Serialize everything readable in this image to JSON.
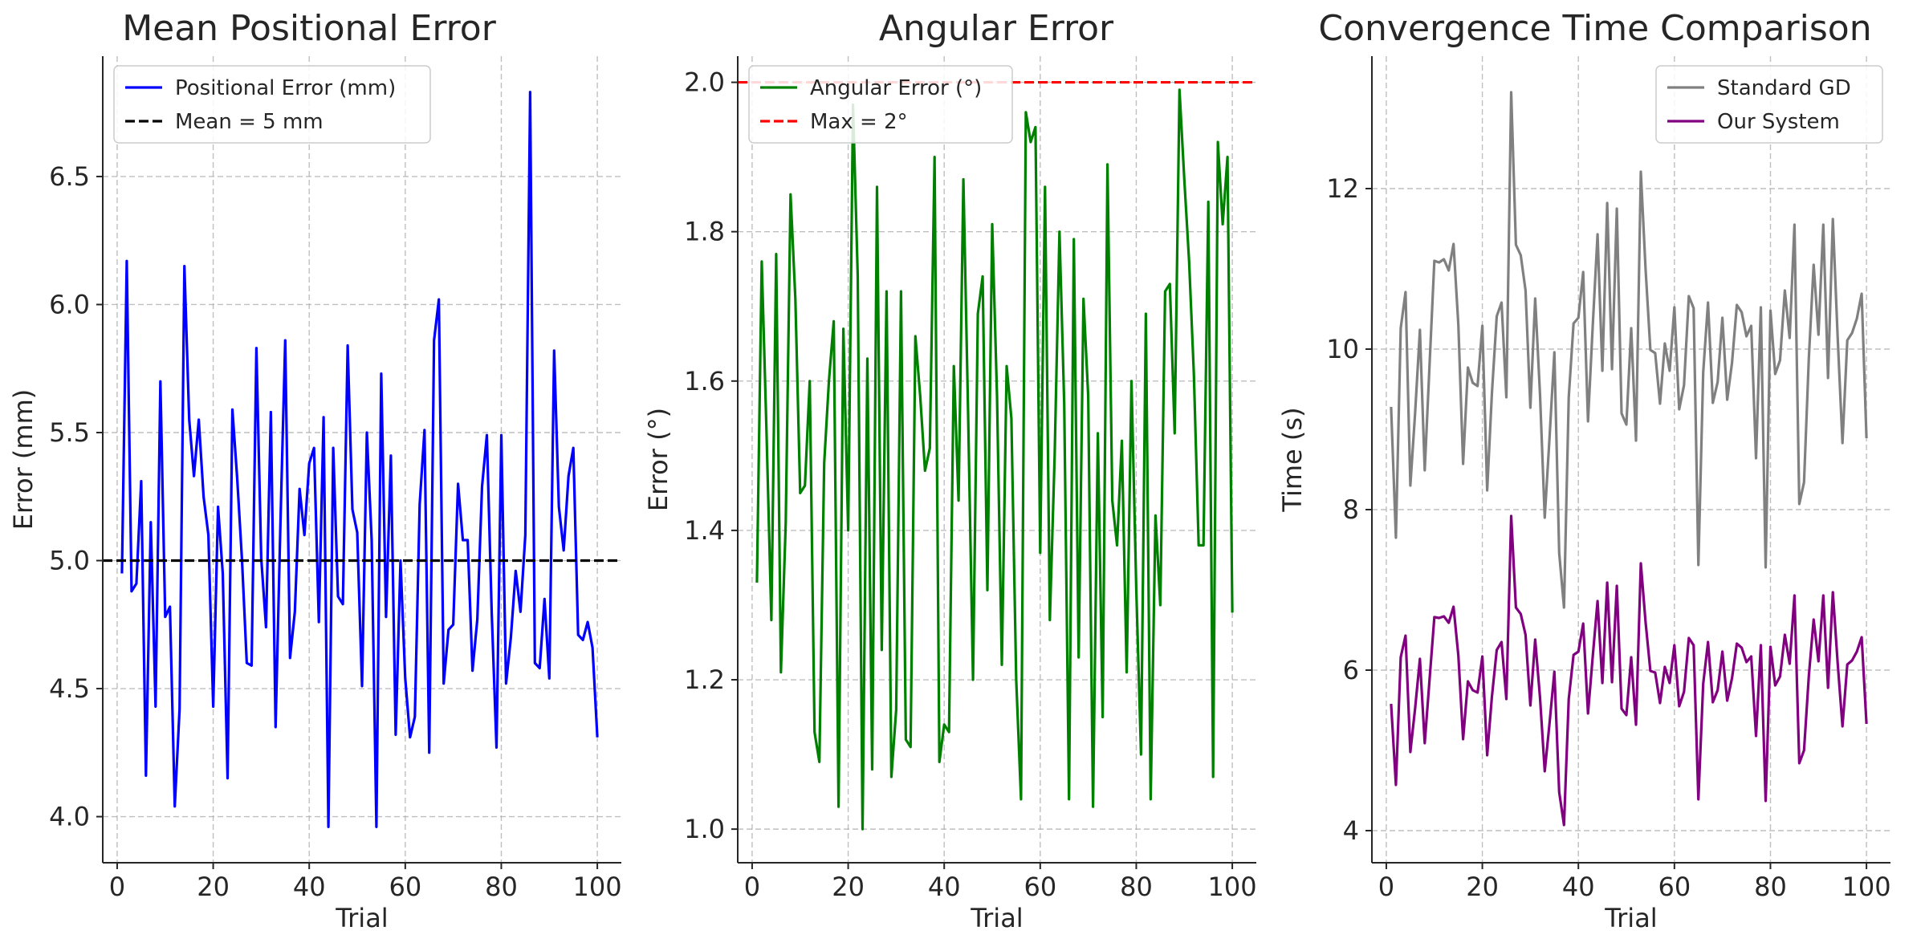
{
  "chart_data": [
    {
      "type": "line",
      "title": "Mean Positional Error",
      "xlabel": "Trial",
      "ylabel": "Error (mm)",
      "xlim": [
        -3,
        105
      ],
      "ylim": [
        3.82,
        6.97
      ],
      "xticks": [
        0,
        20,
        40,
        60,
        80,
        100
      ],
      "yticks": [
        4.0,
        4.5,
        5.0,
        5.5,
        6.0,
        6.5
      ],
      "ytick_labels": [
        "4.0",
        "4.5",
        "5.0",
        "5.5",
        "6.0",
        "6.5"
      ],
      "grid": true,
      "legend_position": "top-left",
      "series": [
        {
          "name": "Positional Error (mm)",
          "color": "#0000ff",
          "style": "solid",
          "x": [
            1,
            2,
            3,
            4,
            5,
            6,
            7,
            8,
            9,
            10,
            11,
            12,
            13,
            14,
            15,
            16,
            17,
            18,
            19,
            20,
            21,
            22,
            23,
            24,
            25,
            26,
            27,
            28,
            29,
            30,
            31,
            32,
            33,
            34,
            35,
            36,
            37,
            38,
            39,
            40,
            41,
            42,
            43,
            44,
            45,
            46,
            47,
            48,
            49,
            50,
            51,
            52,
            53,
            54,
            55,
            56,
            57,
            58,
            59,
            60,
            61,
            62,
            63,
            64,
            65,
            66,
            67,
            68,
            69,
            70,
            71,
            72,
            73,
            74,
            75,
            76,
            77,
            78,
            79,
            80,
            81,
            82,
            83,
            84,
            85,
            86,
            87,
            88,
            89,
            90,
            91,
            92,
            93,
            94,
            95,
            96,
            97,
            98,
            99,
            100
          ],
          "values": [
            4.95,
            6.17,
            4.88,
            4.91,
            5.31,
            4.16,
            5.15,
            4.43,
            5.7,
            4.78,
            4.82,
            4.04,
            4.42,
            6.15,
            5.55,
            5.33,
            5.55,
            5.25,
            5.1,
            4.43,
            5.21,
            4.95,
            4.15,
            5.59,
            5.32,
            5.0,
            4.6,
            4.59,
            5.83,
            5.01,
            4.74,
            5.58,
            4.35,
            5.14,
            5.86,
            4.62,
            4.8,
            5.28,
            5.1,
            5.38,
            5.44,
            4.76,
            5.56,
            3.96,
            5.44,
            4.86,
            4.83,
            5.84,
            5.2,
            5.11,
            4.51,
            5.5,
            5.08,
            3.96,
            5.73,
            4.78,
            5.41,
            4.32,
            5.0,
            4.54,
            4.31,
            4.39,
            5.22,
            5.51,
            4.25,
            5.86,
            6.02,
            4.52,
            4.73,
            4.75,
            5.3,
            5.08,
            5.08,
            4.57,
            4.77,
            5.29,
            5.49,
            4.8,
            4.27,
            5.49,
            4.52,
            4.7,
            4.96,
            4.8,
            5.1,
            6.83,
            4.6,
            4.58,
            4.85,
            4.54,
            5.82,
            5.21,
            5.04,
            5.33,
            5.44,
            4.71,
            4.69,
            4.76,
            4.66,
            4.31
          ]
        },
        {
          "name": "Mean = 5 mm",
          "color": "#000000",
          "style": "dashed",
          "hline": 5.0
        }
      ]
    },
    {
      "type": "line",
      "title": "Angular Error",
      "xlabel": "Trial",
      "ylabel": "Error (°)",
      "xlim": [
        -3,
        105
      ],
      "ylim": [
        0.955,
        2.035
      ],
      "xticks": [
        0,
        20,
        40,
        60,
        80,
        100
      ],
      "yticks": [
        1.0,
        1.2,
        1.4,
        1.6,
        1.8,
        2.0
      ],
      "ytick_labels": [
        "1.0",
        "1.2",
        "1.4",
        "1.6",
        "1.8",
        "2.0"
      ],
      "grid": true,
      "legend_position": "top-left",
      "series": [
        {
          "name": "Angular Error (°)",
          "color": "#008000",
          "style": "solid",
          "x": [
            1,
            2,
            3,
            4,
            5,
            6,
            7,
            8,
            9,
            10,
            11,
            12,
            13,
            14,
            15,
            16,
            17,
            18,
            19,
            20,
            21,
            22,
            23,
            24,
            25,
            26,
            27,
            28,
            29,
            30,
            31,
            32,
            33,
            34,
            35,
            36,
            37,
            38,
            39,
            40,
            41,
            42,
            43,
            44,
            45,
            46,
            47,
            48,
            49,
            50,
            51,
            52,
            53,
            54,
            55,
            56,
            57,
            58,
            59,
            60,
            61,
            62,
            63,
            64,
            65,
            66,
            67,
            68,
            69,
            70,
            71,
            72,
            73,
            74,
            75,
            76,
            77,
            78,
            79,
            80,
            81,
            82,
            83,
            84,
            85,
            86,
            87,
            88,
            89,
            90,
            91,
            92,
            93,
            94,
            95,
            96,
            97,
            98,
            99,
            100
          ],
          "values": [
            1.33,
            1.76,
            1.53,
            1.28,
            1.77,
            1.21,
            1.41,
            1.85,
            1.71,
            1.45,
            1.46,
            1.6,
            1.13,
            1.09,
            1.49,
            1.6,
            1.68,
            1.03,
            1.67,
            1.4,
            1.97,
            1.74,
            1.0,
            1.63,
            1.08,
            1.86,
            1.24,
            1.72,
            1.07,
            1.16,
            1.72,
            1.12,
            1.11,
            1.66,
            1.58,
            1.48,
            1.51,
            1.9,
            1.09,
            1.14,
            1.13,
            1.62,
            1.44,
            1.87,
            1.55,
            1.2,
            1.69,
            1.74,
            1.32,
            1.81,
            1.58,
            1.22,
            1.62,
            1.55,
            1.2,
            1.04,
            1.96,
            1.92,
            1.94,
            1.37,
            1.86,
            1.28,
            1.5,
            1.8,
            1.57,
            1.04,
            1.79,
            1.23,
            1.71,
            1.58,
            1.03,
            1.53,
            1.15,
            1.89,
            1.44,
            1.38,
            1.52,
            1.21,
            1.6,
            1.32,
            1.1,
            1.69,
            1.04,
            1.42,
            1.3,
            1.72,
            1.73,
            1.53,
            1.99,
            1.87,
            1.76,
            1.61,
            1.38,
            1.38,
            1.84,
            1.07,
            1.92,
            1.81,
            1.9,
            1.29
          ]
        },
        {
          "name": "Max = 2°",
          "color": "#ff0000",
          "style": "dashed",
          "hline": 2.0
        }
      ]
    },
    {
      "type": "line",
      "title": "Convergence Time Comparison",
      "xlabel": "Trial",
      "ylabel": "Time (s)",
      "xlim": [
        -3,
        105
      ],
      "ylim": [
        3.6,
        13.65
      ],
      "xticks": [
        0,
        20,
        40,
        60,
        80,
        100
      ],
      "yticks": [
        4,
        6,
        8,
        10,
        12
      ],
      "ytick_labels": [
        "4",
        "6",
        "8",
        "10",
        "12"
      ],
      "grid": true,
      "legend_position": "top-right",
      "series": [
        {
          "name": "Standard GD",
          "color": "#808080",
          "style": "solid",
          "x": [
            1,
            2,
            3,
            4,
            5,
            6,
            7,
            8,
            9,
            10,
            11,
            12,
            13,
            14,
            15,
            16,
            17,
            18,
            19,
            20,
            21,
            22,
            23,
            24,
            25,
            26,
            27,
            28,
            29,
            30,
            31,
            32,
            33,
            34,
            35,
            36,
            37,
            38,
            39,
            40,
            41,
            42,
            43,
            44,
            45,
            46,
            47,
            48,
            49,
            50,
            51,
            52,
            53,
            54,
            55,
            56,
            57,
            58,
            59,
            60,
            61,
            62,
            63,
            64,
            65,
            66,
            67,
            68,
            69,
            70,
            71,
            72,
            73,
            74,
            75,
            76,
            77,
            78,
            79,
            80,
            81,
            82,
            83,
            84,
            85,
            86,
            87,
            88,
            89,
            90,
            91,
            92,
            93,
            94,
            95,
            96,
            97,
            98,
            99,
            100
          ],
          "values": [
            9.28,
            7.65,
            10.26,
            10.71,
            8.3,
            9.2,
            10.24,
            8.49,
            9.8,
            11.1,
            11.08,
            11.12,
            10.98,
            11.31,
            10.3,
            8.57,
            9.77,
            9.58,
            9.54,
            10.29,
            8.24,
            9.45,
            10.41,
            10.58,
            9.4,
            13.2,
            11.3,
            11.17,
            10.73,
            9.27,
            10.63,
            9.44,
            7.9,
            8.9,
            9.96,
            7.46,
            6.78,
            9.4,
            10.32,
            10.39,
            10.96,
            9.1,
            10.29,
            11.43,
            9.73,
            11.82,
            9.75,
            11.75,
            9.2,
            9.06,
            10.26,
            8.86,
            12.21,
            11.0,
            9.99,
            9.95,
            9.32,
            10.07,
            9.73,
            10.52,
            9.25,
            9.55,
            10.66,
            10.51,
            7.31,
            9.71,
            10.58,
            9.33,
            9.59,
            10.39,
            9.37,
            9.83,
            10.55,
            10.46,
            10.16,
            10.29,
            8.64,
            10.52,
            7.28,
            10.48,
            9.69,
            9.86,
            10.73,
            10.14,
            11.55,
            8.07,
            8.34,
            9.89,
            11.05,
            10.18,
            11.55,
            9.64,
            11.62,
            10.15,
            8.83,
            10.11,
            10.2,
            10.38,
            10.69,
            8.89
          ]
        },
        {
          "name": "Our System",
          "color": "#800080",
          "style": "solid",
          "x": [
            1,
            2,
            3,
            4,
            5,
            6,
            7,
            8,
            9,
            10,
            11,
            12,
            13,
            14,
            15,
            16,
            17,
            18,
            19,
            20,
            21,
            22,
            23,
            24,
            25,
            26,
            27,
            28,
            29,
            30,
            31,
            32,
            33,
            34,
            35,
            36,
            37,
            38,
            39,
            40,
            41,
            42,
            43,
            44,
            45,
            46,
            47,
            48,
            49,
            50,
            51,
            52,
            53,
            54,
            55,
            56,
            57,
            58,
            59,
            60,
            61,
            62,
            63,
            64,
            65,
            66,
            67,
            68,
            69,
            70,
            71,
            72,
            73,
            74,
            75,
            76,
            77,
            78,
            79,
            80,
            81,
            82,
            83,
            84,
            85,
            86,
            87,
            88,
            89,
            90,
            91,
            92,
            93,
            94,
            95,
            96,
            97,
            98,
            99,
            100
          ],
          "values": [
            5.58,
            4.57,
            6.16,
            6.43,
            4.98,
            5.52,
            6.14,
            5.09,
            5.88,
            6.66,
            6.65,
            6.67,
            6.59,
            6.79,
            6.18,
            5.14,
            5.86,
            5.75,
            5.72,
            6.17,
            4.94,
            5.67,
            6.25,
            6.35,
            5.64,
            7.92,
            6.78,
            6.7,
            6.44,
            5.56,
            6.38,
            5.66,
            4.74,
            5.34,
            5.98,
            4.48,
            4.07,
            5.64,
            6.19,
            6.23,
            6.58,
            5.46,
            6.17,
            6.86,
            5.84,
            7.09,
            5.85,
            7.05,
            5.52,
            5.44,
            6.16,
            5.32,
            7.33,
            6.6,
            5.99,
            5.97,
            5.59,
            6.04,
            5.84,
            6.31,
            5.55,
            5.73,
            6.4,
            6.31,
            4.39,
            5.83,
            6.35,
            5.6,
            5.75,
            6.23,
            5.62,
            5.9,
            6.33,
            6.28,
            6.1,
            6.17,
            5.18,
            6.31,
            4.37,
            6.29,
            5.81,
            5.92,
            6.44,
            6.08,
            6.93,
            4.84,
            5.0,
            5.93,
            6.63,
            6.11,
            6.93,
            5.78,
            6.97,
            6.09,
            5.3,
            6.07,
            6.12,
            6.23,
            6.41,
            5.33
          ]
        }
      ]
    }
  ]
}
